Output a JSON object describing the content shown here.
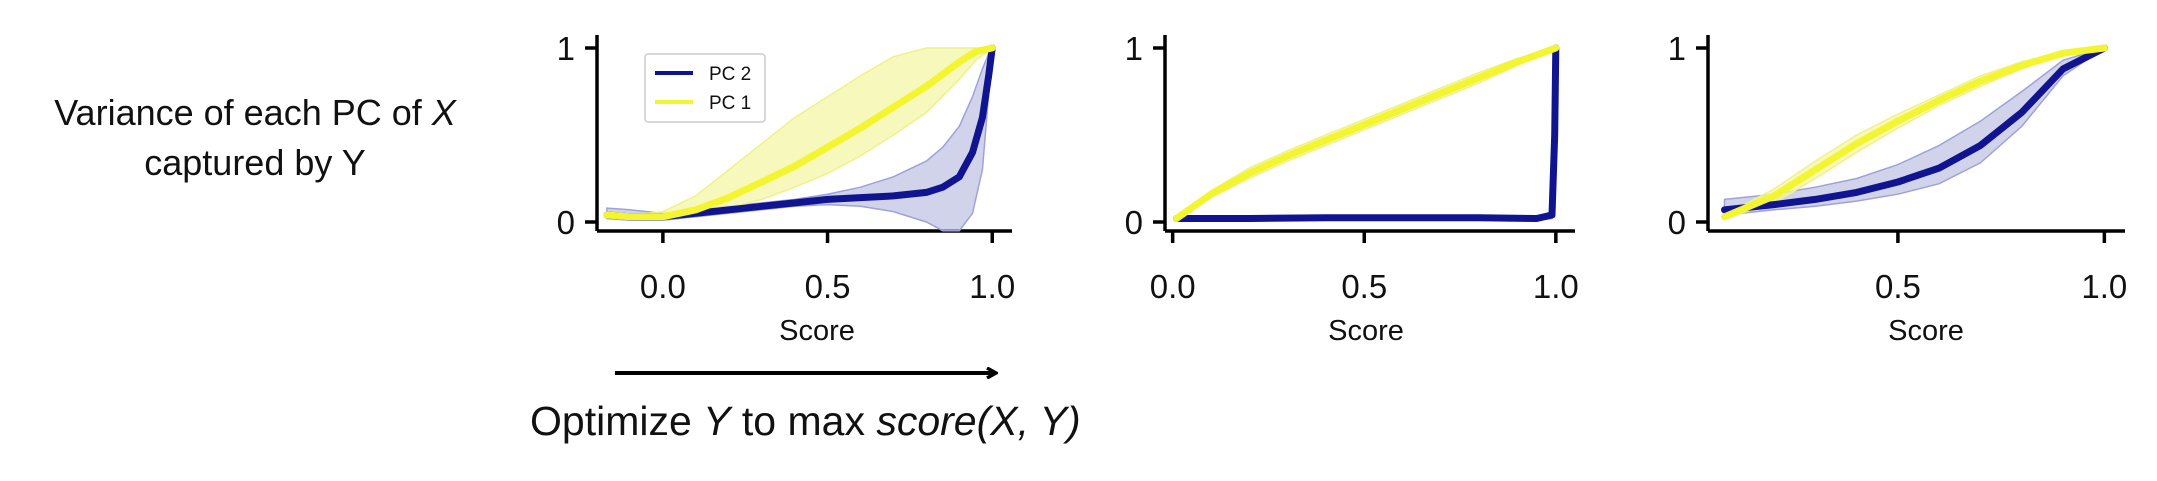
{
  "row_label": {
    "line1": "Variance of each PC of ",
    "line1_italic": "X",
    "line2": "captured by Y"
  },
  "arrow_caption": {
    "p1": "Optimize ",
    "p2": "Y",
    "p3": " to max ",
    "p4": "score(X, Y)"
  },
  "colors": {
    "pc1": "#f2f530",
    "pc2": "#101490",
    "pc1_band": "#f4f7a6",
    "pc2_band": "#b9bbe0"
  },
  "chart_data": [
    {
      "type": "line",
      "xlabel": "Score",
      "xlim": [
        -0.2,
        1.06
      ],
      "ylim": [
        0,
        1
      ],
      "xticks": [
        0.0,
        0.5,
        1.0
      ],
      "xtick_labels": [
        "0.0",
        "0.5",
        "1.0"
      ],
      "yticks": [
        0,
        1
      ],
      "ytick_labels": [
        "0",
        "1"
      ],
      "legend": {
        "placement": "top-left",
        "entries": [
          "PC 2",
          "PC 1"
        ]
      },
      "series": [
        {
          "name": "PC 2",
          "color": "#101490",
          "x": [
            -0.17,
            -0.1,
            0.0,
            0.1,
            0.2,
            0.3,
            0.4,
            0.5,
            0.6,
            0.7,
            0.8,
            0.85,
            0.9,
            0.94,
            0.97,
            0.99,
            1.0
          ],
          "y": [
            0.04,
            0.03,
            0.03,
            0.05,
            0.07,
            0.09,
            0.11,
            0.13,
            0.14,
            0.15,
            0.17,
            0.2,
            0.26,
            0.4,
            0.6,
            0.85,
            1.0
          ],
          "band_lo": [
            0.02,
            0.01,
            0.01,
            0.03,
            0.05,
            0.07,
            0.09,
            0.1,
            0.09,
            0.06,
            0.0,
            -0.05,
            -0.05,
            0.05,
            0.3,
            0.75,
            1.0
          ],
          "band_hi": [
            0.08,
            0.07,
            0.05,
            0.07,
            0.09,
            0.11,
            0.13,
            0.16,
            0.2,
            0.26,
            0.35,
            0.43,
            0.55,
            0.72,
            0.88,
            0.97,
            1.0
          ]
        },
        {
          "name": "PC 1",
          "color": "#f2f530",
          "x": [
            -0.17,
            -0.1,
            0.0,
            0.1,
            0.2,
            0.3,
            0.4,
            0.5,
            0.6,
            0.7,
            0.8,
            0.9,
            0.95,
            1.0
          ],
          "y": [
            0.04,
            0.03,
            0.03,
            0.07,
            0.14,
            0.23,
            0.32,
            0.43,
            0.54,
            0.66,
            0.78,
            0.92,
            0.98,
            1.0
          ],
          "band_lo": [
            0.03,
            0.02,
            0.02,
            0.04,
            0.08,
            0.13,
            0.2,
            0.28,
            0.38,
            0.5,
            0.63,
            0.82,
            0.93,
            1.0
          ],
          "band_hi": [
            0.05,
            0.04,
            0.06,
            0.15,
            0.3,
            0.45,
            0.6,
            0.72,
            0.84,
            0.95,
            1.0,
            1.0,
            1.0,
            1.0
          ]
        }
      ]
    },
    {
      "type": "line",
      "xlabel": "Score",
      "xlim": [
        -0.02,
        1.05
      ],
      "ylim": [
        0,
        1
      ],
      "xticks": [
        0.0,
        0.5,
        1.0
      ],
      "xtick_labels": [
        "0.0",
        "0.5",
        "1.0"
      ],
      "yticks": [
        0,
        1
      ],
      "ytick_labels": [
        "0",
        "1"
      ],
      "series": [
        {
          "name": "PC 2",
          "color": "#101490",
          "x": [
            0.01,
            0.2,
            0.4,
            0.6,
            0.8,
            0.95,
            0.99,
            0.997,
            1.0
          ],
          "y": [
            0.02,
            0.02,
            0.025,
            0.025,
            0.025,
            0.02,
            0.04,
            0.5,
            1.0
          ],
          "band_lo": [
            0.01,
            0.01,
            0.015,
            0.015,
            0.015,
            0.01,
            0.02,
            0.45,
            0.98
          ],
          "band_hi": [
            0.03,
            0.03,
            0.035,
            0.035,
            0.035,
            0.03,
            0.06,
            0.55,
            1.0
          ]
        },
        {
          "name": "PC 1",
          "color": "#f2f530",
          "x": [
            0.01,
            0.1,
            0.2,
            0.3,
            0.4,
            0.5,
            0.6,
            0.7,
            0.8,
            0.9,
            1.0
          ],
          "y": [
            0.02,
            0.16,
            0.28,
            0.38,
            0.47,
            0.56,
            0.65,
            0.74,
            0.83,
            0.92,
            1.0
          ],
          "band_lo": [
            0.01,
            0.14,
            0.25,
            0.35,
            0.44,
            0.53,
            0.62,
            0.71,
            0.8,
            0.9,
            1.0
          ],
          "band_hi": [
            0.03,
            0.18,
            0.31,
            0.41,
            0.5,
            0.59,
            0.68,
            0.77,
            0.86,
            0.94,
            1.0
          ]
        }
      ]
    },
    {
      "type": "line",
      "xlabel": "Score",
      "xlim": [
        0.04,
        1.05
      ],
      "ylim": [
        0,
        1
      ],
      "xticks": [
        0.5,
        1.0
      ],
      "xtick_labels": [
        "0.5",
        "1.0"
      ],
      "yticks": [
        0,
        1
      ],
      "ytick_labels": [
        "0",
        "1"
      ],
      "series": [
        {
          "name": "PC 2",
          "color": "#101490",
          "x": [
            0.08,
            0.2,
            0.3,
            0.4,
            0.5,
            0.6,
            0.7,
            0.8,
            0.9,
            1.0
          ],
          "y": [
            0.07,
            0.1,
            0.13,
            0.17,
            0.23,
            0.31,
            0.44,
            0.63,
            0.88,
            1.0
          ],
          "band_lo": [
            0.04,
            0.07,
            0.09,
            0.12,
            0.16,
            0.22,
            0.34,
            0.55,
            0.84,
            1.0
          ],
          "band_hi": [
            0.13,
            0.16,
            0.2,
            0.25,
            0.33,
            0.44,
            0.58,
            0.75,
            0.93,
            1.0
          ]
        },
        {
          "name": "PC 1",
          "color": "#f2f530",
          "x": [
            0.08,
            0.2,
            0.3,
            0.4,
            0.5,
            0.6,
            0.7,
            0.8,
            0.9,
            1.0
          ],
          "y": [
            0.03,
            0.15,
            0.3,
            0.45,
            0.58,
            0.7,
            0.81,
            0.9,
            0.97,
            1.0
          ],
          "band_lo": [
            0.02,
            0.11,
            0.25,
            0.4,
            0.54,
            0.67,
            0.78,
            0.88,
            0.96,
            1.0
          ],
          "band_hi": [
            0.04,
            0.19,
            0.35,
            0.5,
            0.62,
            0.73,
            0.84,
            0.92,
            0.98,
            1.0
          ]
        }
      ]
    }
  ]
}
